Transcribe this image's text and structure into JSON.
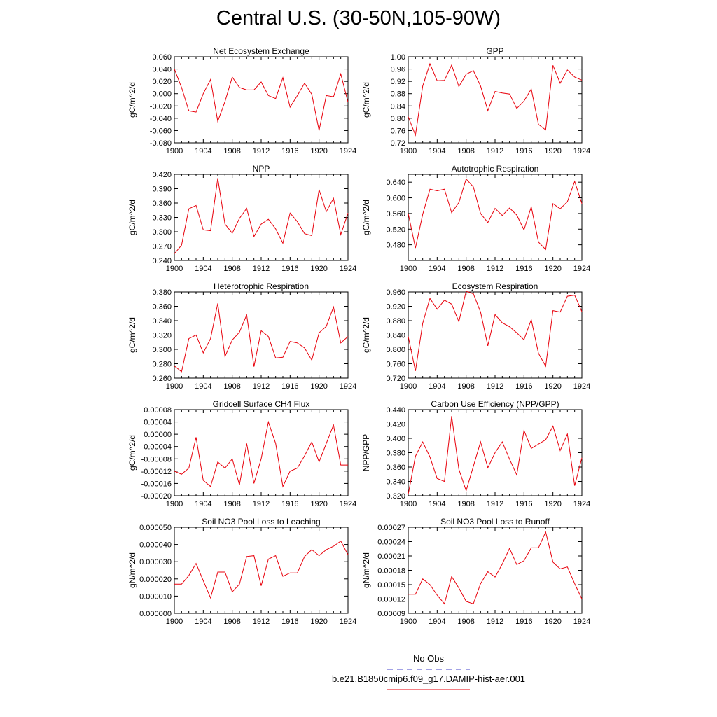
{
  "figure": {
    "title": "Central U.S. (30-50N,105-90W)"
  },
  "legend": {
    "obs_label": "No Obs",
    "obs_color": "#4444cc",
    "case_label": "b.e21.B1850cmip6.f09_g17.DAMIP-hist-aer.001",
    "case_color": "#e8000b"
  },
  "chart_data": [
    {
      "type": "line",
      "title": "Net Ecosystem Exchange",
      "ylabel": "gC/m^2/d",
      "xlim": [
        1900,
        1924
      ],
      "xticks": [
        "1900",
        "1904",
        "1908",
        "1912",
        "1916",
        "1920",
        "1924"
      ],
      "ylim": [
        -0.08,
        0.06
      ],
      "yticks": [
        "0.060",
        "0.040",
        "0.020",
        "0.000",
        "-0.020",
        "-0.040",
        "-0.060",
        "-0.080"
      ],
      "x": [
        1900,
        1901,
        1902,
        1903,
        1904,
        1905,
        1906,
        1907,
        1908,
        1909,
        1910,
        1911,
        1912,
        1913,
        1914,
        1915,
        1916,
        1917,
        1918,
        1919,
        1920,
        1921,
        1922,
        1923,
        1924
      ],
      "series": [
        {
          "values": [
            0.04,
            0.01,
            -0.028,
            -0.03,
            0.0,
            0.023,
            -0.045,
            -0.013,
            0.027,
            0.01,
            0.006,
            0.006,
            0.019,
            -0.003,
            -0.008,
            0.026,
            -0.022,
            -0.003,
            0.017,
            -0.001,
            -0.06,
            -0.003,
            -0.005,
            0.032,
            -0.014
          ],
          "color": "#e8000b"
        }
      ]
    },
    {
      "type": "line",
      "title": "GPP",
      "ylabel": "gC/m^2/d",
      "xlim": [
        1900,
        1924
      ],
      "xticks": [
        "1900",
        "1904",
        "1908",
        "1912",
        "1916",
        "1920",
        "1924"
      ],
      "ylim": [
        0.72,
        1.0
      ],
      "yticks": [
        "1.00",
        "0.96",
        "0.92",
        "0.88",
        "0.84",
        "0.80",
        "0.76",
        "0.72"
      ],
      "x": [
        1900,
        1901,
        1902,
        1903,
        1904,
        1905,
        1906,
        1907,
        1908,
        1909,
        1910,
        1911,
        1912,
        1913,
        1914,
        1915,
        1916,
        1917,
        1918,
        1919,
        1920,
        1921,
        1922,
        1923,
        1924
      ],
      "series": [
        {
          "values": [
            0.805,
            0.745,
            0.905,
            0.977,
            0.922,
            0.923,
            0.973,
            0.903,
            0.943,
            0.955,
            0.905,
            0.825,
            0.887,
            0.882,
            0.879,
            0.832,
            0.856,
            0.895,
            0.78,
            0.762,
            0.972,
            0.914,
            0.957,
            0.934,
            0.924
          ],
          "color": "#e8000b"
        }
      ]
    },
    {
      "type": "line",
      "title": "NPP",
      "ylabel": "gC/m^2/d",
      "xlim": [
        1900,
        1924
      ],
      "xticks": [
        "1900",
        "1904",
        "1908",
        "1912",
        "1916",
        "1920",
        "1924"
      ],
      "ylim": [
        0.24,
        0.42
      ],
      "yticks": [
        "0.420",
        "0.390",
        "0.360",
        "0.330",
        "0.300",
        "0.270",
        "0.240"
      ],
      "x": [
        1900,
        1901,
        1902,
        1903,
        1904,
        1905,
        1906,
        1907,
        1908,
        1909,
        1910,
        1911,
        1912,
        1913,
        1914,
        1915,
        1916,
        1917,
        1918,
        1919,
        1920,
        1921,
        1922,
        1923,
        1924
      ],
      "series": [
        {
          "values": [
            0.254,
            0.272,
            0.348,
            0.355,
            0.304,
            0.302,
            0.412,
            0.316,
            0.297,
            0.328,
            0.349,
            0.29,
            0.316,
            0.326,
            0.306,
            0.276,
            0.339,
            0.321,
            0.296,
            0.292,
            0.388,
            0.342,
            0.37,
            0.294,
            0.339
          ],
          "color": "#e8000b"
        }
      ]
    },
    {
      "type": "line",
      "title": "Autotrophic Respiration",
      "ylabel": "gC/m^2/d",
      "xlim": [
        1900,
        1924
      ],
      "xticks": [
        "1900",
        "1904",
        "1908",
        "1912",
        "1916",
        "1920",
        "1924"
      ],
      "ylim": [
        0.44,
        0.66
      ],
      "yticks": [
        "0.640",
        "0.600",
        "0.560",
        "0.520",
        "0.480"
      ],
      "x": [
        1900,
        1901,
        1902,
        1903,
        1904,
        1905,
        1906,
        1907,
        1908,
        1909,
        1910,
        1911,
        1912,
        1913,
        1914,
        1915,
        1916,
        1917,
        1918,
        1919,
        1920,
        1921,
        1922,
        1923,
        1924
      ],
      "series": [
        {
          "values": [
            0.56,
            0.472,
            0.558,
            0.622,
            0.618,
            0.622,
            0.562,
            0.588,
            0.648,
            0.628,
            0.56,
            0.537,
            0.573,
            0.555,
            0.574,
            0.556,
            0.518,
            0.577,
            0.487,
            0.468,
            0.585,
            0.572,
            0.59,
            0.642,
            0.585
          ],
          "color": "#e8000b"
        }
      ]
    },
    {
      "type": "line",
      "title": "Heterotrophic Respiration",
      "ylabel": "gC/m^2/d",
      "xlim": [
        1900,
        1924
      ],
      "xticks": [
        "1900",
        "1904",
        "1908",
        "1912",
        "1916",
        "1920",
        "1924"
      ],
      "ylim": [
        0.26,
        0.38
      ],
      "yticks": [
        "0.380",
        "0.360",
        "0.340",
        "0.320",
        "0.300",
        "0.280",
        "0.260"
      ],
      "x": [
        1900,
        1901,
        1902,
        1903,
        1904,
        1905,
        1906,
        1907,
        1908,
        1909,
        1910,
        1911,
        1912,
        1913,
        1914,
        1915,
        1916,
        1917,
        1918,
        1919,
        1920,
        1921,
        1922,
        1923,
        1924
      ],
      "series": [
        {
          "values": [
            0.277,
            0.269,
            0.315,
            0.32,
            0.295,
            0.315,
            0.364,
            0.29,
            0.313,
            0.324,
            0.348,
            0.276,
            0.326,
            0.318,
            0.288,
            0.289,
            0.311,
            0.309,
            0.302,
            0.285,
            0.323,
            0.332,
            0.359,
            0.309,
            0.318
          ],
          "color": "#e8000b"
        }
      ]
    },
    {
      "type": "line",
      "title": "Ecosystem Respiration",
      "ylabel": "gC/m^2/d",
      "xlim": [
        1900,
        1924
      ],
      "xticks": [
        "1900",
        "1904",
        "1908",
        "1912",
        "1916",
        "1920",
        "1924"
      ],
      "ylim": [
        0.72,
        0.96
      ],
      "yticks": [
        "0.960",
        "0.920",
        "0.880",
        "0.840",
        "0.800",
        "0.760",
        "0.720"
      ],
      "x": [
        1900,
        1901,
        1902,
        1903,
        1904,
        1905,
        1906,
        1907,
        1908,
        1909,
        1910,
        1911,
        1912,
        1913,
        1914,
        1915,
        1916,
        1917,
        1918,
        1919,
        1920,
        1921,
        1922,
        1923,
        1924
      ],
      "series": [
        {
          "values": [
            0.836,
            0.74,
            0.873,
            0.942,
            0.912,
            0.937,
            0.926,
            0.877,
            0.962,
            0.955,
            0.904,
            0.81,
            0.897,
            0.874,
            0.863,
            0.846,
            0.827,
            0.883,
            0.789,
            0.753,
            0.908,
            0.904,
            0.948,
            0.951,
            0.905
          ],
          "color": "#e8000b"
        }
      ]
    },
    {
      "type": "line",
      "title": "Gridcell Surface CH4 Flux",
      "ylabel": "gC/m^2/d",
      "xlim": [
        1900,
        1924
      ],
      "xticks": [
        "1900",
        "1904",
        "1908",
        "1912",
        "1916",
        "1920",
        "1924"
      ],
      "ylim": [
        -0.0002,
        8e-05
      ],
      "yticks": [
        "0.00008",
        "0.00004",
        "0.00000",
        "-0.00004",
        "-0.00008",
        "-0.00012",
        "-0.00016",
        "-0.00020"
      ],
      "x": [
        1900,
        1901,
        1902,
        1903,
        1904,
        1905,
        1906,
        1907,
        1908,
        1909,
        1910,
        1911,
        1912,
        1913,
        1914,
        1915,
        1916,
        1917,
        1918,
        1919,
        1920,
        1921,
        1922,
        1923,
        1924
      ],
      "series": [
        {
          "values": [
            -0.00012,
            -0.00013,
            -0.00011,
            -1e-05,
            -0.00015,
            -0.00017,
            -9e-05,
            -0.00011,
            -8e-05,
            -0.000165,
            -3e-05,
            -0.00016,
            -8e-05,
            4e-05,
            -3e-05,
            -0.00017,
            -0.00012,
            -0.00011,
            -7e-05,
            -2.5e-05,
            -9e-05,
            -3e-05,
            3e-05,
            -0.0001,
            -0.0001
          ],
          "color": "#e8000b"
        }
      ]
    },
    {
      "type": "line",
      "title": "Carbon Use Efficiency (NPP/GPP)",
      "ylabel": "NPP/GPP",
      "xlim": [
        1900,
        1924
      ],
      "xticks": [
        "1900",
        "1904",
        "1908",
        "1912",
        "1916",
        "1920",
        "1924"
      ],
      "ylim": [
        0.32,
        0.44
      ],
      "yticks": [
        "0.440",
        "0.420",
        "0.400",
        "0.380",
        "0.360",
        "0.340",
        "0.320"
      ],
      "x": [
        1900,
        1901,
        1902,
        1903,
        1904,
        1905,
        1906,
        1907,
        1908,
        1909,
        1910,
        1911,
        1912,
        1913,
        1914,
        1915,
        1916,
        1917,
        1918,
        1919,
        1920,
        1921,
        1922,
        1923,
        1924
      ],
      "series": [
        {
          "values": [
            0.322,
            0.375,
            0.395,
            0.374,
            0.344,
            0.34,
            0.431,
            0.357,
            0.327,
            0.361,
            0.395,
            0.359,
            0.38,
            0.395,
            0.371,
            0.349,
            0.411,
            0.386,
            0.392,
            0.398,
            0.417,
            0.383,
            0.406,
            0.334,
            0.373
          ],
          "color": "#e8000b"
        }
      ]
    },
    {
      "type": "line",
      "title": "Soil NO3 Pool Loss to Leaching",
      "ylabel": "gN/m^2/d",
      "xlim": [
        1900,
        1924
      ],
      "xticks": [
        "1900",
        "1904",
        "1908",
        "1912",
        "1916",
        "1920",
        "1924"
      ],
      "ylim": [
        0.0,
        5e-05
      ],
      "yticks": [
        "0.000050",
        "0.000040",
        "0.000030",
        "0.000020",
        "0.000010",
        "0.000000"
      ],
      "x": [
        1900,
        1901,
        1902,
        1903,
        1904,
        1905,
        1906,
        1907,
        1908,
        1909,
        1910,
        1911,
        1912,
        1913,
        1914,
        1915,
        1916,
        1917,
        1918,
        1919,
        1920,
        1921,
        1922,
        1923,
        1924
      ],
      "series": [
        {
          "values": [
            1.7e-05,
            1.7e-05,
            2.2e-05,
            2.9e-05,
            1.9e-05,
            9e-06,
            2.4e-05,
            2.4e-05,
            1.25e-05,
            1.7e-05,
            3.3e-05,
            3.35e-05,
            1.6e-05,
            3.15e-05,
            3.35e-05,
            2.15e-05,
            2.35e-05,
            2.35e-05,
            3.3e-05,
            3.7e-05,
            3.35e-05,
            3.7e-05,
            3.9e-05,
            4.2e-05,
            3.4e-05
          ],
          "color": "#e8000b"
        }
      ]
    },
    {
      "type": "line",
      "title": "Soil NO3 Pool Loss to Runoff",
      "ylabel": "gN/m^2/d",
      "xlim": [
        1900,
        1924
      ],
      "xticks": [
        "1900",
        "1904",
        "1908",
        "1912",
        "1916",
        "1920",
        "1924"
      ],
      "ylim": [
        9e-05,
        0.00027
      ],
      "yticks": [
        "0.00027",
        "0.00024",
        "0.00021",
        "0.00018",
        "0.00015",
        "0.00012",
        "0.00009"
      ],
      "x": [
        1900,
        1901,
        1902,
        1903,
        1904,
        1905,
        1906,
        1907,
        1908,
        1909,
        1910,
        1911,
        1912,
        1913,
        1914,
        1915,
        1916,
        1917,
        1918,
        1919,
        1920,
        1921,
        1922,
        1923,
        1924
      ],
      "series": [
        {
          "values": [
            0.00013,
            0.00013,
            0.000162,
            0.00015,
            0.000128,
            0.00011,
            0.000167,
            0.000143,
            0.000115,
            0.00011,
            0.000152,
            0.000177,
            0.000166,
            0.000193,
            0.000226,
            0.000192,
            0.0002,
            0.000227,
            0.000227,
            0.00026,
            0.000197,
            0.000183,
            0.000187,
            0.000152,
            0.00012
          ],
          "color": "#e8000b"
        }
      ]
    }
  ]
}
